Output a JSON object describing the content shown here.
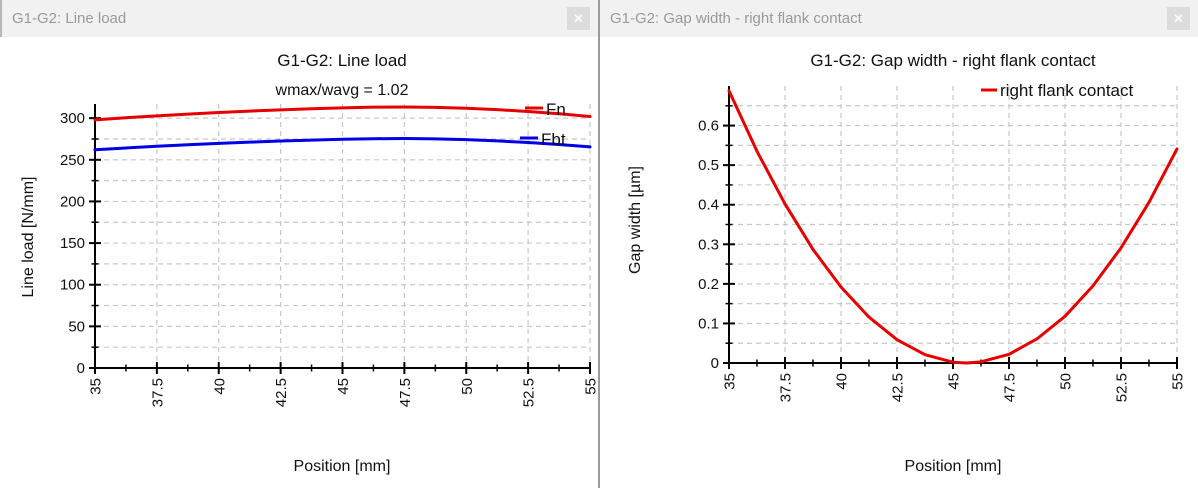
{
  "panels": [
    {
      "titlebar": "G1-G2: Line load",
      "close_icon": "✕"
    },
    {
      "titlebar": "G1-G2: Gap width - right flank contact",
      "close_icon": "✕"
    }
  ],
  "colors": {
    "series_red": "#e80000",
    "series_blue": "#0000e8",
    "grid": "#c8c8c8",
    "axis": "#000000",
    "titlebar_bg": "#f1f1f1",
    "titlebar_text": "#9a9a9a",
    "close_bg": "#dcdcdc",
    "divider": "#9b9b9b"
  },
  "chart_data": [
    {
      "type": "line",
      "title": "G1-G2: Line load",
      "subtitle": "wmax/wavg = 1.02",
      "xlabel": "Position [mm]",
      "ylabel": "Line load [N/mm]",
      "xlim": [
        35,
        55
      ],
      "ylim": [
        0,
        317
      ],
      "xticks": [
        35,
        37.5,
        40,
        42.5,
        45,
        47.5,
        50,
        52.5,
        55
      ],
      "xtick_labels": [
        "35",
        "37.5",
        "40",
        "42.5",
        "45",
        "47.5",
        "50",
        "52.5",
        "55"
      ],
      "x_minor_step": 1.25,
      "yticks": [
        0,
        50,
        100,
        150,
        200,
        250,
        300
      ],
      "ytick_labels": [
        "0",
        "50",
        "100",
        "150",
        "200",
        "250",
        "300"
      ],
      "y_minor_step": 25,
      "grid": "dashed",
      "legend_position": "top-right-inside",
      "x": [
        35,
        36.25,
        37.5,
        38.75,
        40,
        41.25,
        42.5,
        43.75,
        45,
        46.25,
        47.5,
        48.75,
        50,
        51.25,
        52.5,
        53.75,
        55
      ],
      "series": [
        {
          "name": "Fn",
          "color": "#e80000",
          "values": [
            298,
            300.5,
            302.8,
            304.9,
            306.8,
            308.5,
            310,
            311.3,
            312.4,
            313.2,
            313.4,
            313,
            311.9,
            310.2,
            308,
            305.3,
            302
          ]
        },
        {
          "name": "Fbt",
          "color": "#0000e8",
          "values": [
            262,
            264.2,
            266.2,
            268,
            269.7,
            271.2,
            272.5,
            273.6,
            274.6,
            275.3,
            275.5,
            275.1,
            274.2,
            272.7,
            270.7,
            268.4,
            265.5
          ]
        }
      ]
    },
    {
      "type": "line",
      "title": "G1-G2: Gap width - right flank contact",
      "subtitle": "",
      "xlabel": "Position [mm]",
      "ylabel": "Gap width [µm]",
      "xlim": [
        35,
        55
      ],
      "ylim": [
        0,
        0.7
      ],
      "xticks": [
        35,
        37.5,
        40,
        42.5,
        45,
        47.5,
        50,
        52.5,
        55
      ],
      "xtick_labels": [
        "35",
        "37.5",
        "40",
        "42.5",
        "45",
        "47.5",
        "50",
        "52.5",
        "55"
      ],
      "x_minor_step": 1.25,
      "yticks": [
        0,
        0.1,
        0.2,
        0.3,
        0.4,
        0.5,
        0.6
      ],
      "ytick_labels": [
        "0",
        "0.1",
        "0.2",
        "0.3",
        "0.4",
        "0.5",
        "0.6"
      ],
      "y_minor_step": 0.05,
      "grid": "dashed",
      "legend_position": "top-right-inside",
      "x": [
        35,
        36.25,
        37.5,
        38.75,
        40,
        41.25,
        42.5,
        43.75,
        45,
        45.6,
        46.25,
        47.5,
        48.75,
        50,
        51.25,
        52.5,
        53.75,
        55
      ],
      "series": [
        {
          "name": "right flank contact",
          "color": "#e80000",
          "values": [
            0.688,
            0.535,
            0.402,
            0.287,
            0.192,
            0.116,
            0.059,
            0.021,
            0.002,
            0,
            0.003,
            0.022,
            0.061,
            0.118,
            0.195,
            0.291,
            0.406,
            0.541
          ]
        }
      ]
    }
  ]
}
